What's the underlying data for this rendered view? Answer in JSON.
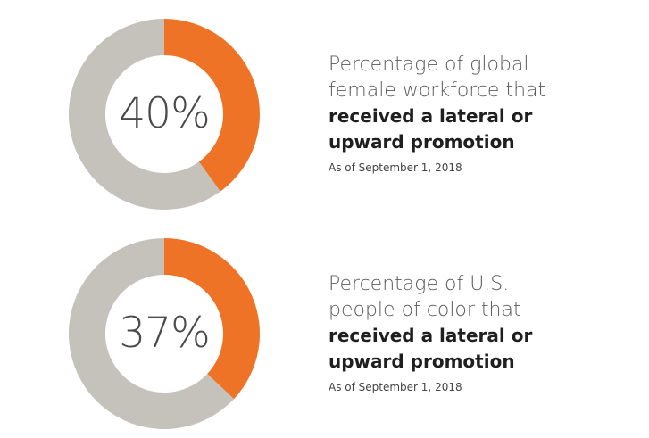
{
  "colors": {
    "accent": "#ee7326",
    "remainder": "#c5c1bb",
    "value_text": "#4a4a4a",
    "caption_text": "#5a5a5a",
    "caption_bold": "#1f1f1f"
  },
  "chart_data": [
    {
      "type": "pie",
      "subtype": "donut",
      "value_label": "40%",
      "values": [
        40,
        60
      ],
      "colors": [
        "#ee7326",
        "#c5c1bb"
      ],
      "caption": {
        "line1": "Percentage of global",
        "line2": "female workforce that",
        "bold1": "received a lateral or",
        "bold2": "upward promotion",
        "date": "As of September 1, 2018"
      }
    },
    {
      "type": "pie",
      "subtype": "donut",
      "value_label": "37%",
      "values": [
        37,
        63
      ],
      "colors": [
        "#ee7326",
        "#c5c1bb"
      ],
      "caption": {
        "line1": "Percentage of U.S.",
        "line2": "people of color that",
        "bold1": "received a lateral or",
        "bold2": "upward promotion",
        "date": "As of September 1, 2018"
      }
    }
  ]
}
